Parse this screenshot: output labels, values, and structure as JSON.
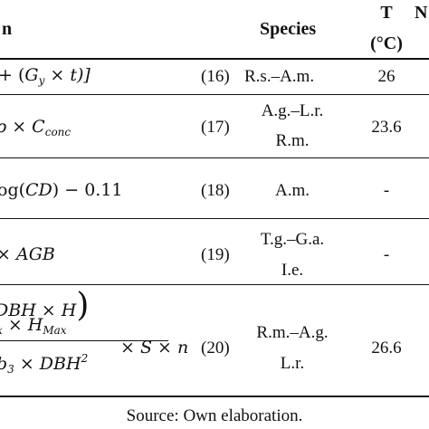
{
  "header": {
    "equation": "n",
    "species": "Species",
    "temp_line1": "T",
    "temp_line2": "(°C)",
    "next": "N"
  },
  "rows": [
    {
      "eq_text": "+ (",
      "eq_var": "G",
      "eq_sub": "y",
      "eq_rest": " × t)]",
      "number": "(16)",
      "species": [
        "R.s.–A.m."
      ],
      "temp": "26"
    },
    {
      "eq_var1": "ρ",
      "eq_times": " × ",
      "eq_var": "C",
      "eq_sub": "conc",
      "number": "(17)",
      "species": [
        "A.g.–L.r.",
        "R.m."
      ],
      "temp": "23.6"
    },
    {
      "eq_text": "og(",
      "eq_var": "CD",
      "eq_rest": ") − 0.11",
      "number": "(18)",
      "species": [
        "A.m."
      ],
      "temp": "-"
    },
    {
      "eq_text": "× ",
      "eq_var": "AGB",
      "number": "(19)",
      "species": [
        "T.g.–G.a.",
        "I.e."
      ],
      "temp": "-"
    },
    {
      "eq_top": "DBH × H",
      "eq_mid_a": "x",
      "eq_mid_b": " × H",
      "eq_mid_sub": "Max",
      "eq_bot_a": "b",
      "eq_bot_sub": "3",
      "eq_bot_b": " × DBH",
      "eq_bot_sup": "2",
      "eq_tail": "× S × n",
      "number": "(20)",
      "species": [
        "R.m.–A.g.",
        "L.r."
      ],
      "temp": "26.6"
    }
  ],
  "source": "Source: Own elaboration."
}
